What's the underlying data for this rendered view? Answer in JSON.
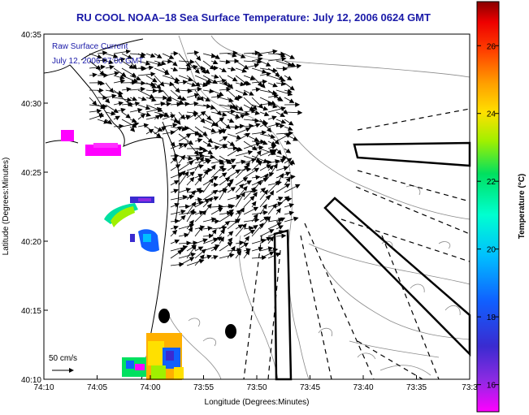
{
  "title": "RU COOL  NOAA–18  Sea Surface Temperature:  July 12, 2006 0624 GMT",
  "legend": {
    "line1": "Raw Surface Current",
    "line2": "July 12, 2006 07:00 GMT"
  },
  "scale_arrow_label": "50 cm/s",
  "map": {
    "x_label": "Longitude (Degrees:Minutes)",
    "y_label": "Latitude (Degrees:Minutes)",
    "x_ticks": [
      "74:10",
      "74:05",
      "74:00",
      "73:55",
      "73:50",
      "73:45",
      "73:40",
      "73:35",
      "73:3"
    ],
    "y_ticks": [
      "40:35",
      "40:30",
      "40:25",
      "40:20",
      "40:15",
      "40:10"
    ]
  },
  "colorbar": {
    "label": "Temperature (°C)",
    "ticks": [
      "26",
      "24",
      "22",
      "20",
      "18",
      "16"
    ],
    "range": [
      15.2,
      27.3
    ]
  },
  "colors": {
    "title": "#1a1aa8",
    "land": "#ffffff",
    "contour": "#888888"
  }
}
